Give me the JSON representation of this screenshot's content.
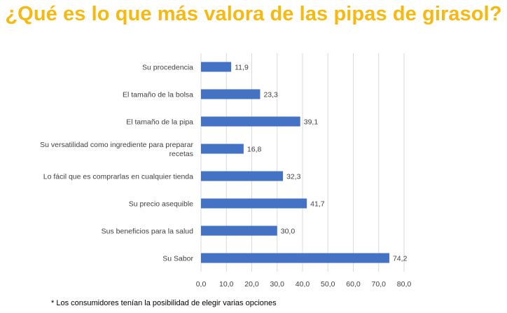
{
  "title": "¿Qué es lo que más valora de las pipas de girasol?",
  "footnote": "* Los consumidores tenían la posibilidad de elegir varias opciones",
  "colors": {
    "title": "#f7b90f",
    "bar": "#4472c4",
    "grid": "#d9d9d9",
    "text": "#404040"
  },
  "chart_data": {
    "type": "bar",
    "orientation": "horizontal",
    "categories": [
      [
        "Su procedencia"
      ],
      [
        "El tamaño de la bolsa"
      ],
      [
        "El tamaño de la pipa"
      ],
      [
        "Su versatilidad como ingrediente para preparar",
        "recetas"
      ],
      [
        "Lo fácil que es comprarlas en cualquier tienda"
      ],
      [
        "Su precio asequible"
      ],
      [
        "Sus beneficios para la salud"
      ],
      [
        "Su Sabor"
      ]
    ],
    "values": [
      11.9,
      23.3,
      39.1,
      16.8,
      32.3,
      41.7,
      30.0,
      74.2
    ],
    "value_labels": [
      "11,9",
      "23,3",
      "39,1",
      "16,8",
      "32,3",
      "41,7",
      "30,0",
      "74,2"
    ],
    "ticks": [
      0,
      10,
      20,
      30,
      40,
      50,
      60,
      70,
      80
    ],
    "tick_labels": [
      "0,0",
      "10,0",
      "20,0",
      "30,0",
      "40,0",
      "50,0",
      "60,0",
      "70,0",
      "80,0"
    ],
    "xlim": [
      0,
      80
    ],
    "grid": true,
    "legend": "none"
  }
}
